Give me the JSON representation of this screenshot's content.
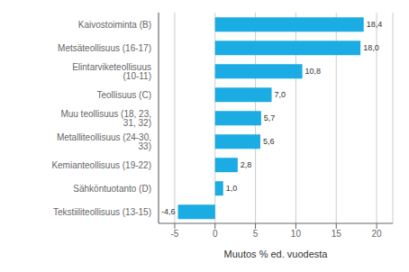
{
  "chart_data": {
    "type": "bar",
    "orientation": "horizontal",
    "categories": [
      "Tekstiiliteollisuus (13-15)",
      "Sähköntuotanto (D)",
      "Kemianteollisuus (19-22)",
      "Metalliteollisuus (24-30, 33)",
      "Muu teollisuus (18, 23, 31, 32)",
      "Teollisuus (C)",
      "Elintarviketeollisuus (10-11)",
      "Metsäteollisuus (16-17)",
      "Kaivostoiminta (B)"
    ],
    "values": [
      -4.6,
      1.0,
      2.8,
      5.6,
      5.7,
      7.0,
      10.8,
      18.0,
      18.4
    ],
    "value_labels": [
      "-4,6",
      "1,0",
      "2,8",
      "5,6",
      "5,7",
      "7,0",
      "10,8",
      "18,0",
      "18,4"
    ],
    "data_labels": true,
    "color": "#1aace3",
    "xlabel": "Muutos % ed. vuodesta",
    "xlim": [
      -7,
      22
    ],
    "xticks": [
      -5,
      0,
      5,
      10,
      15,
      20
    ],
    "grid": true
  }
}
